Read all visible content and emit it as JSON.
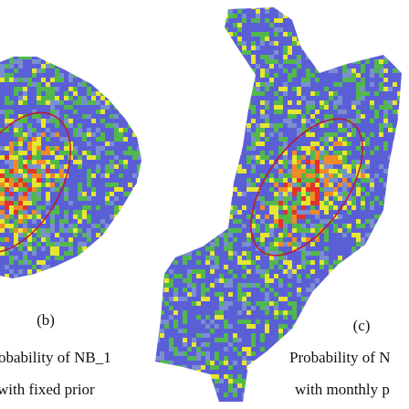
{
  "panels": [
    {
      "label": "(b)",
      "caption_line1": "obability of NB_1",
      "caption_line2": "with fixed prior"
    },
    {
      "label": "(c)",
      "caption_line1": "Probability of N",
      "caption_line2": "with monthly p"
    }
  ]
}
